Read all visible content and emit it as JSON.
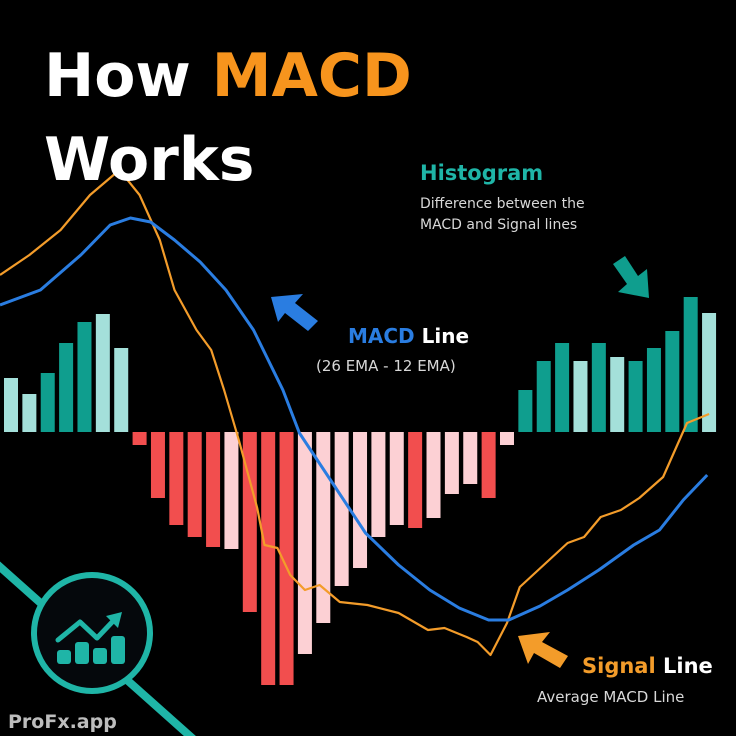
{
  "title": {
    "part1": "How ",
    "part2": "MACD",
    "part3": "Works"
  },
  "annotations": {
    "histogram": {
      "title": "Histogram",
      "line1": "Difference between the",
      "line2": "MACD and Signal lines"
    },
    "macd": {
      "word1": "MACD",
      "word2": " Line",
      "formula": "(26 EMA - 12 EMA)"
    },
    "signal": {
      "word1": "Signal",
      "word2": " Line",
      "desc": "Average MACD Line"
    }
  },
  "brand": {
    "name": "ProFx.app",
    "icon": "growth-chart-icon"
  },
  "colors": {
    "accent_orange": "#f7941d",
    "macd_line": "#2a7de1",
    "signal_line": "#f39c2a",
    "hist_pos_strong": "#0f9e8e",
    "hist_pos_weak": "#a4e0da",
    "hist_neg_strong": "#f24e4e",
    "hist_neg_weak": "#fcd0d4",
    "teal": "#1fb5a7",
    "text_gray": "#d8d8d8"
  },
  "chart_data": {
    "type": "bar",
    "title": "",
    "xlabel": "",
    "ylabel": "",
    "grid": false,
    "histogram": [
      {
        "v": 5.4,
        "s": "weak"
      },
      {
        "v": 3.8,
        "s": "weak"
      },
      {
        "v": 5.9,
        "s": "strong"
      },
      {
        "v": 8.9,
        "s": "strong"
      },
      {
        "v": 11.0,
        "s": "strong"
      },
      {
        "v": 11.8,
        "s": "weak"
      },
      {
        "v": 8.4,
        "s": "weak"
      },
      {
        "v": -1.3,
        "s": "strong"
      },
      {
        "v": -6.6,
        "s": "strong"
      },
      {
        "v": -9.3,
        "s": "strong"
      },
      {
        "v": -10.5,
        "s": "strong"
      },
      {
        "v": -11.5,
        "s": "strong"
      },
      {
        "v": -11.7,
        "s": "weak"
      },
      {
        "v": -18.0,
        "s": "strong"
      },
      {
        "v": -25.3,
        "s": "strong"
      },
      {
        "v": -25.3,
        "s": "strong"
      },
      {
        "v": -22.2,
        "s": "weak"
      },
      {
        "v": -19.1,
        "s": "weak"
      },
      {
        "v": -15.4,
        "s": "weak"
      },
      {
        "v": -13.6,
        "s": "weak"
      },
      {
        "v": -10.5,
        "s": "weak"
      },
      {
        "v": -9.3,
        "s": "weak"
      },
      {
        "v": -9.6,
        "s": "strong"
      },
      {
        "v": -8.6,
        "s": "weak"
      },
      {
        "v": -6.2,
        "s": "weak"
      },
      {
        "v": -5.2,
        "s": "weak"
      },
      {
        "v": -6.6,
        "s": "strong"
      },
      {
        "v": -1.3,
        "s": "weak"
      },
      {
        "v": 4.2,
        "s": "strong"
      },
      {
        "v": 7.1,
        "s": "strong"
      },
      {
        "v": 8.9,
        "s": "strong"
      },
      {
        "v": 7.1,
        "s": "weak"
      },
      {
        "v": 8.9,
        "s": "strong"
      },
      {
        "v": 7.5,
        "s": "weak"
      },
      {
        "v": 7.1,
        "s": "strong"
      },
      {
        "v": 8.4,
        "s": "strong"
      },
      {
        "v": 10.1,
        "s": "strong"
      },
      {
        "v": 13.5,
        "s": "strong"
      },
      {
        "v": 11.9,
        "s": "weak"
      }
    ],
    "macd_line": [
      [
        -0.6,
        12.7
      ],
      [
        1.6,
        14.2
      ],
      [
        3.8,
        17.7
      ],
      [
        5.4,
        20.7
      ],
      [
        6.5,
        21.4
      ],
      [
        7.6,
        21.0
      ],
      [
        8.9,
        19.2
      ],
      [
        10.3,
        17.0
      ],
      [
        11.7,
        14.2
      ],
      [
        13.2,
        10.2
      ],
      [
        14.8,
        4.2
      ],
      [
        15.7,
        -0.1
      ],
      [
        17.5,
        -5.1
      ],
      [
        19.3,
        -10.1
      ],
      [
        21.1,
        -13.3
      ],
      [
        22.8,
        -15.8
      ],
      [
        24.4,
        -17.6
      ],
      [
        26.0,
        -18.8
      ],
      [
        27.1,
        -18.8
      ],
      [
        28.8,
        -17.4
      ],
      [
        30.3,
        -15.8
      ],
      [
        32.0,
        -13.8
      ],
      [
        33.9,
        -11.3
      ],
      [
        35.3,
        -9.8
      ],
      [
        36.6,
        -6.8
      ],
      [
        37.9,
        -4.3
      ]
    ],
    "signal_line": [
      [
        -0.6,
        15.7
      ],
      [
        1.0,
        17.7
      ],
      [
        2.7,
        20.2
      ],
      [
        4.3,
        23.7
      ],
      [
        5.9,
        26.2
      ],
      [
        7.0,
        23.7
      ],
      [
        8.1,
        19.2
      ],
      [
        8.9,
        14.2
      ],
      [
        10.1,
        10.2
      ],
      [
        10.9,
        8.2
      ],
      [
        11.6,
        4.2
      ],
      [
        12.4,
        -0.8
      ],
      [
        13.4,
        -7.6
      ],
      [
        13.8,
        -11.3
      ],
      [
        14.5,
        -11.6
      ],
      [
        15.2,
        -14.3
      ],
      [
        16.0,
        -15.8
      ],
      [
        16.8,
        -15.3
      ],
      [
        17.9,
        -17.0
      ],
      [
        19.4,
        -17.3
      ],
      [
        21.1,
        -18.1
      ],
      [
        22.7,
        -19.8
      ],
      [
        23.6,
        -19.6
      ],
      [
        24.8,
        -20.5
      ],
      [
        25.4,
        -21.0
      ],
      [
        26.1,
        -22.3
      ],
      [
        27.0,
        -19.1
      ],
      [
        27.7,
        -15.5
      ],
      [
        30.3,
        -11.1
      ],
      [
        31.2,
        -10.5
      ],
      [
        32.1,
        -8.5
      ],
      [
        33.2,
        -7.8
      ],
      [
        34.2,
        -6.6
      ],
      [
        35.5,
        -4.5
      ],
      [
        36.8,
        0.9
      ],
      [
        38.0,
        1.8
      ]
    ]
  }
}
